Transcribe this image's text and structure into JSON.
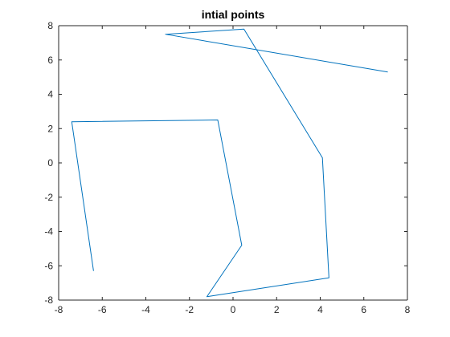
{
  "chart_data": {
    "type": "line",
    "title": "intial points",
    "xlabel": "",
    "ylabel": "",
    "xlim": [
      -8,
      8
    ],
    "ylim": [
      -8,
      8
    ],
    "xticks": [
      -8,
      -6,
      -4,
      -2,
      0,
      2,
      4,
      6,
      8
    ],
    "yticks": [
      -8,
      -6,
      -4,
      -2,
      0,
      2,
      4,
      6,
      8
    ],
    "grid": false,
    "legend": "none",
    "series": [
      {
        "color": "#0072bd",
        "points": [
          {
            "x": -6.4,
            "y": -6.3
          },
          {
            "x": -7.4,
            "y": 2.4
          },
          {
            "x": -0.7,
            "y": 2.5
          },
          {
            "x": 0.4,
            "y": -4.8
          },
          {
            "x": -1.2,
            "y": -7.8
          },
          {
            "x": 4.4,
            "y": -6.7
          },
          {
            "x": 4.1,
            "y": 0.3
          },
          {
            "x": 0.5,
            "y": 7.8
          },
          {
            "x": -3.1,
            "y": 7.5
          },
          {
            "x": 7.1,
            "y": 5.3
          }
        ]
      }
    ]
  }
}
